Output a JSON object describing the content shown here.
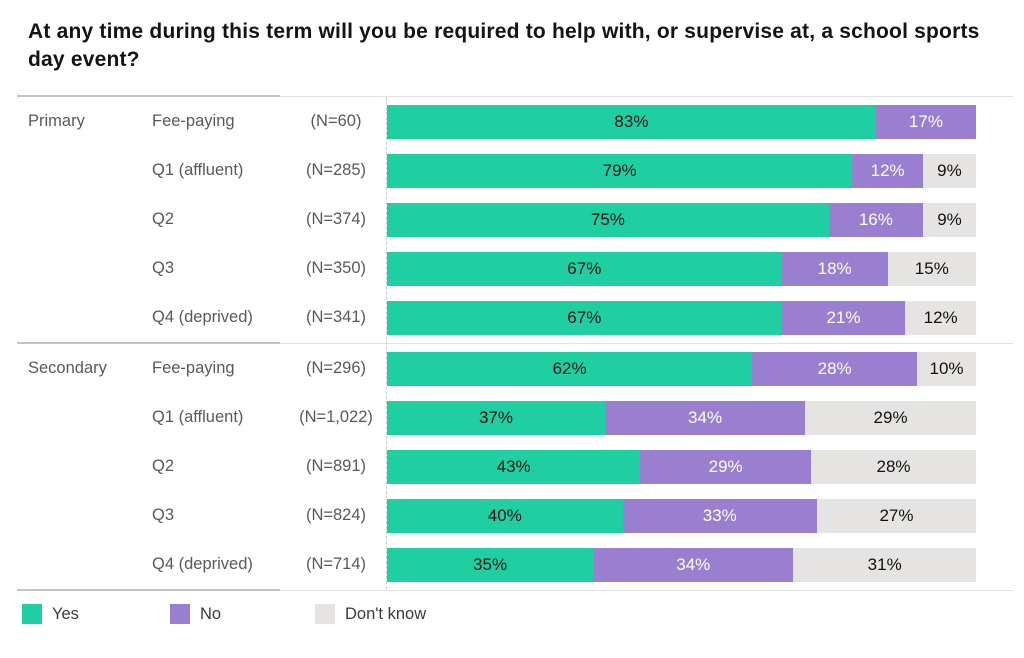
{
  "title": "At any time during this term will you be required to help with, or supervise at, a school sports day event?",
  "chart_data": {
    "type": "bar",
    "stacked": true,
    "orientation": "horizontal",
    "xlim": [
      0,
      100
    ],
    "value_suffix": "%",
    "grid": "dashed baseline at 0%",
    "legend_position": "bottom",
    "series": [
      {
        "name": "Yes",
        "color": "#1fcfa2",
        "text_color": "#111111"
      },
      {
        "name": "No",
        "color": "#9a7fd1",
        "text_color": "#ffffff"
      },
      {
        "name": "Don't know",
        "color": "#e5e4e3",
        "text_color": "#111111"
      }
    ],
    "groups": [
      {
        "group": "Primary",
        "rows": [
          {
            "category": "Fee-paying",
            "n": "(N=60)",
            "values": [
              83,
              17,
              0
            ]
          },
          {
            "category": "Q1 (affluent)",
            "n": "(N=285)",
            "values": [
              79,
              12,
              9
            ]
          },
          {
            "category": "Q2",
            "n": "(N=374)",
            "values": [
              75,
              16,
              9
            ]
          },
          {
            "category": "Q3",
            "n": "(N=350)",
            "values": [
              67,
              18,
              15
            ]
          },
          {
            "category": "Q4 (deprived)",
            "n": "(N=341)",
            "values": [
              67,
              21,
              12
            ]
          }
        ]
      },
      {
        "group": "Secondary",
        "rows": [
          {
            "category": "Fee-paying",
            "n": "(N=296)",
            "values": [
              62,
              28,
              10
            ]
          },
          {
            "category": "Q1 (affluent)",
            "n": "(N=1,022)",
            "values": [
              37,
              34,
              29
            ]
          },
          {
            "category": "Q2",
            "n": "(N=891)",
            "values": [
              43,
              29,
              28
            ]
          },
          {
            "category": "Q3",
            "n": "(N=824)",
            "values": [
              40,
              33,
              27
            ]
          },
          {
            "category": "Q4 (deprived)",
            "n": "(N=714)",
            "values": [
              35,
              34,
              31
            ]
          }
        ]
      }
    ]
  },
  "separator_colors": {
    "dark": "#c4c4c4",
    "light": "#e1e1e1"
  }
}
